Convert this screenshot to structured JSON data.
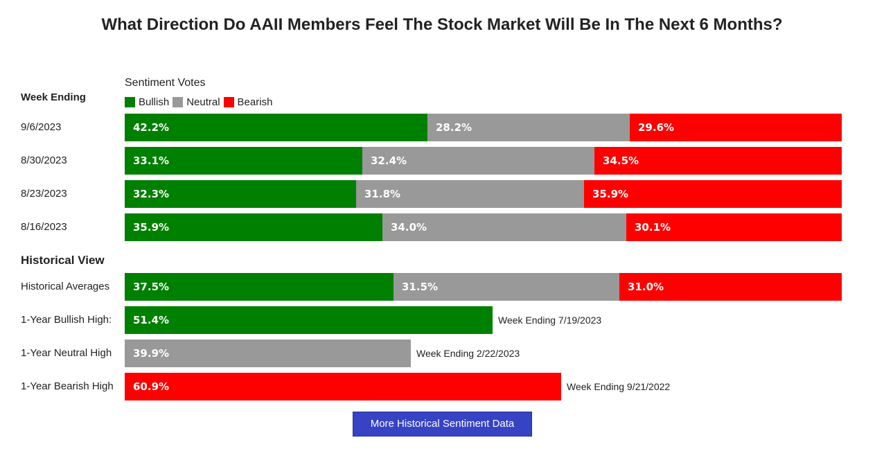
{
  "title": "What Direction Do AAII Members Feel The Stock Market Will Be In The Next 6 Months?",
  "subtitle": "Sentiment Votes",
  "week_header": "Week Ending",
  "section_header": "Historical View",
  "button_label": "More Historical Sentiment Data",
  "colors": {
    "bullish": "#008000",
    "neutral": "#999999",
    "bearish": "#ff0000",
    "button": "#3543c4"
  },
  "chart_data": {
    "type": "bar",
    "orientation": "horizontal",
    "stacked": true,
    "legend": [
      "Bullish",
      "Neutral",
      "Bearish"
    ],
    "legend_placement": "top-left",
    "weekly": [
      {
        "label": "9/6/2023",
        "values": [
          42.2,
          28.2,
          29.6
        ],
        "texts": [
          "42.2%",
          "28.2%",
          "29.6%"
        ]
      },
      {
        "label": "8/30/2023",
        "values": [
          33.1,
          32.4,
          34.5
        ],
        "texts": [
          "33.1%",
          "32.4%",
          "34.5%"
        ]
      },
      {
        "label": "8/23/2023",
        "values": [
          32.3,
          31.8,
          35.9
        ],
        "texts": [
          "32.3%",
          "31.8%",
          "35.9%"
        ]
      },
      {
        "label": "8/16/2023",
        "values": [
          35.9,
          34.0,
          30.1
        ],
        "texts": [
          "35.9%",
          "34.0%",
          "30.1%"
        ]
      }
    ],
    "historical": [
      {
        "label": "Historical Averages",
        "type": "stacked",
        "values": [
          37.5,
          31.5,
          31.0
        ],
        "texts": [
          "37.5%",
          "31.5%",
          "31.0%"
        ],
        "note": ""
      },
      {
        "label": "1-Year Bullish High:",
        "type": "single",
        "series": "bullish",
        "value": 51.4,
        "text": "51.4%",
        "note": "Week Ending 7/19/2023"
      },
      {
        "label": "1-Year Neutral High",
        "type": "single",
        "series": "neutral",
        "value": 39.9,
        "text": "39.9%",
        "note": "Week Ending 2/22/2023"
      },
      {
        "label": "1-Year Bearish High",
        "type": "single",
        "series": "bearish",
        "value": 60.9,
        "text": "60.9%",
        "note": "Week Ending 9/21/2022"
      }
    ]
  }
}
